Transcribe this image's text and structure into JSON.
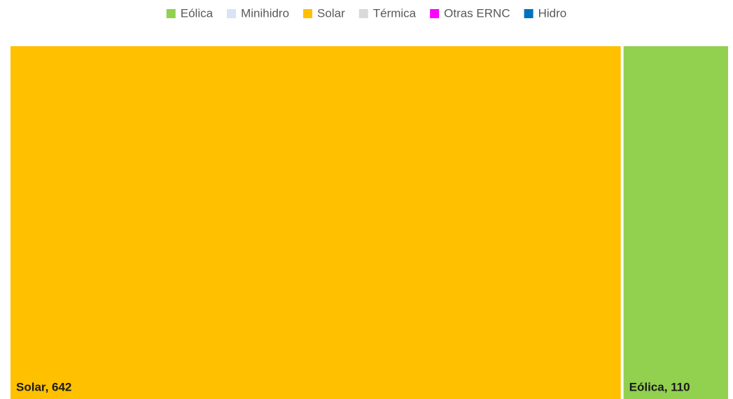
{
  "chart_data": {
    "type": "treemap",
    "categories": [
      "Eólica",
      "Minihidro",
      "Solar",
      "Térmica",
      "Otras ERNC",
      "Hidro"
    ],
    "values": [
      110,
      0,
      642,
      0,
      0,
      0
    ],
    "value_labels": [
      "Eólica, 110",
      null,
      "Solar, 642",
      null,
      null,
      null
    ],
    "colors": [
      "#92d050",
      "#dae3f3",
      "#ffc000",
      "#d9d9d9",
      "#ff00ff",
      "#0070c0"
    ],
    "legend": "top"
  }
}
